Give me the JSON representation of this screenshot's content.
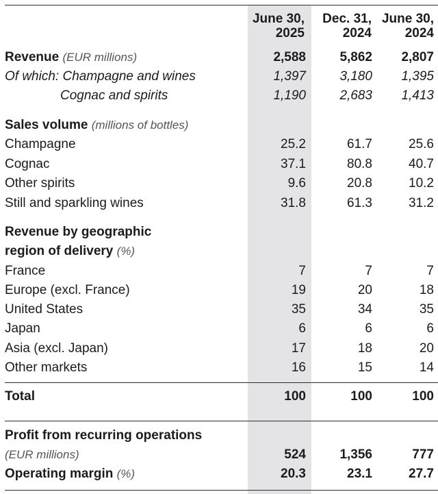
{
  "colors": {
    "highlight_column": "#e4e4e6"
  },
  "columns": [
    {
      "line1": "June 30,",
      "line2": "2025"
    },
    {
      "line1": "Dec. 31,",
      "line2": "2024"
    },
    {
      "line1": "June 30,",
      "line2": "2024"
    }
  ],
  "revenue": {
    "label": "Revenue",
    "unit": "(EUR millions)",
    "values": [
      "2,588",
      "5,862",
      "2,807"
    ],
    "breakdown": [
      {
        "label": "Of which: Champagne and wines",
        "values": [
          "1,397",
          "3,180",
          "1,395"
        ]
      },
      {
        "label": "Cognac and spirits",
        "values": [
          "1,190",
          "2,683",
          "1,413"
        ]
      }
    ]
  },
  "sales_volume": {
    "label": "Sales volume",
    "unit": "(millions of bottles)",
    "rows": [
      {
        "label": "Champagne",
        "values": [
          "25.2",
          "61.7",
          "25.6"
        ]
      },
      {
        "label": "Cognac",
        "values": [
          "37.1",
          "80.8",
          "40.7"
        ]
      },
      {
        "label": "Other spirits",
        "values": [
          "9.6",
          "20.8",
          "10.2"
        ]
      },
      {
        "label": "Still and sparkling wines",
        "values": [
          "31.8",
          "61.3",
          "31.2"
        ]
      }
    ]
  },
  "geographic": {
    "label_line1": "Revenue by geographic",
    "label_line2": "region of delivery",
    "unit": "(%)",
    "rows": [
      {
        "label": "France",
        "values": [
          "7",
          "7",
          "7"
        ]
      },
      {
        "label": "Europe (excl. France)",
        "values": [
          "19",
          "20",
          "18"
        ]
      },
      {
        "label": "United States",
        "values": [
          "35",
          "34",
          "35"
        ]
      },
      {
        "label": "Japan",
        "values": [
          "6",
          "6",
          "6"
        ]
      },
      {
        "label": "Asia (excl. Japan)",
        "values": [
          "17",
          "18",
          "20"
        ]
      },
      {
        "label": "Other markets",
        "values": [
          "16",
          "15",
          "14"
        ]
      }
    ],
    "total": {
      "label": "Total",
      "values": [
        "100",
        "100",
        "100"
      ]
    }
  },
  "profit_recurring": {
    "label": "Profit from recurring operations",
    "unit": "(EUR millions)",
    "values": [
      "524",
      "1,356",
      "777"
    ]
  },
  "operating_margin": {
    "label": "Operating margin",
    "unit": "(%)",
    "values": [
      "20.3",
      "23.1",
      "27.7"
    ]
  }
}
